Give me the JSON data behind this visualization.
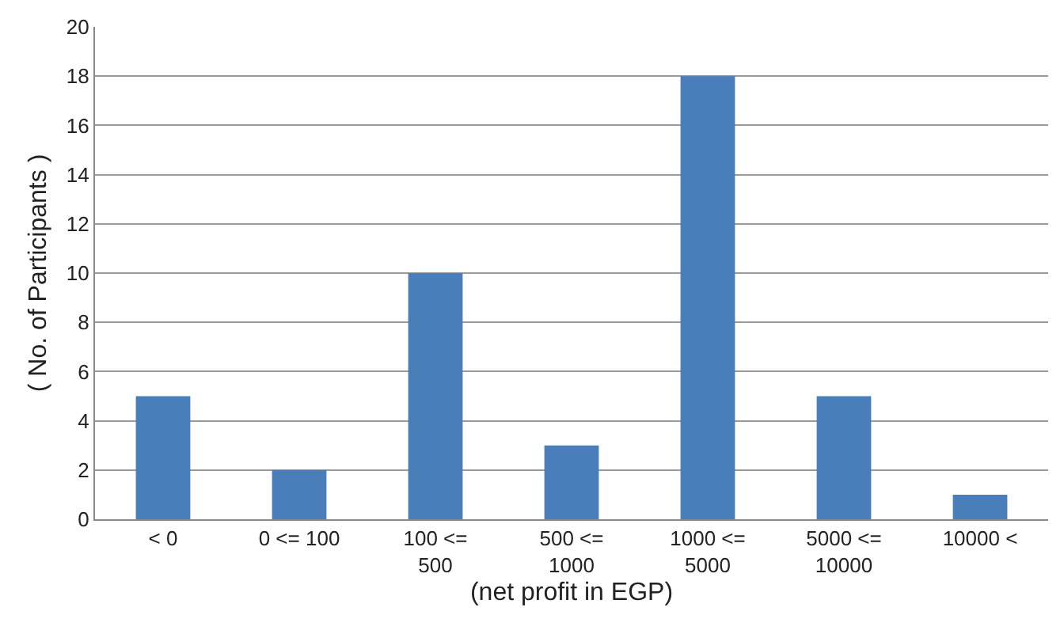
{
  "chart_data": {
    "type": "bar",
    "xlabel": "(net profit in EGP)",
    "ylabel": "( No. of Participants )",
    "categories": [
      "< 0",
      "0 <= 100",
      "100 <=\n500",
      "500 <=\n1000",
      "1000 <=\n5000",
      "5000 <=\n10000",
      "10000 <"
    ],
    "values": [
      5,
      2,
      10,
      3,
      18,
      5,
      1
    ],
    "color": "#4a7ebb",
    "ylim": [
      0,
      20
    ],
    "yticks": [
      0,
      2,
      4,
      6,
      8,
      10,
      12,
      14,
      16,
      18,
      20
    ],
    "grid": "y",
    "legend": false
  }
}
